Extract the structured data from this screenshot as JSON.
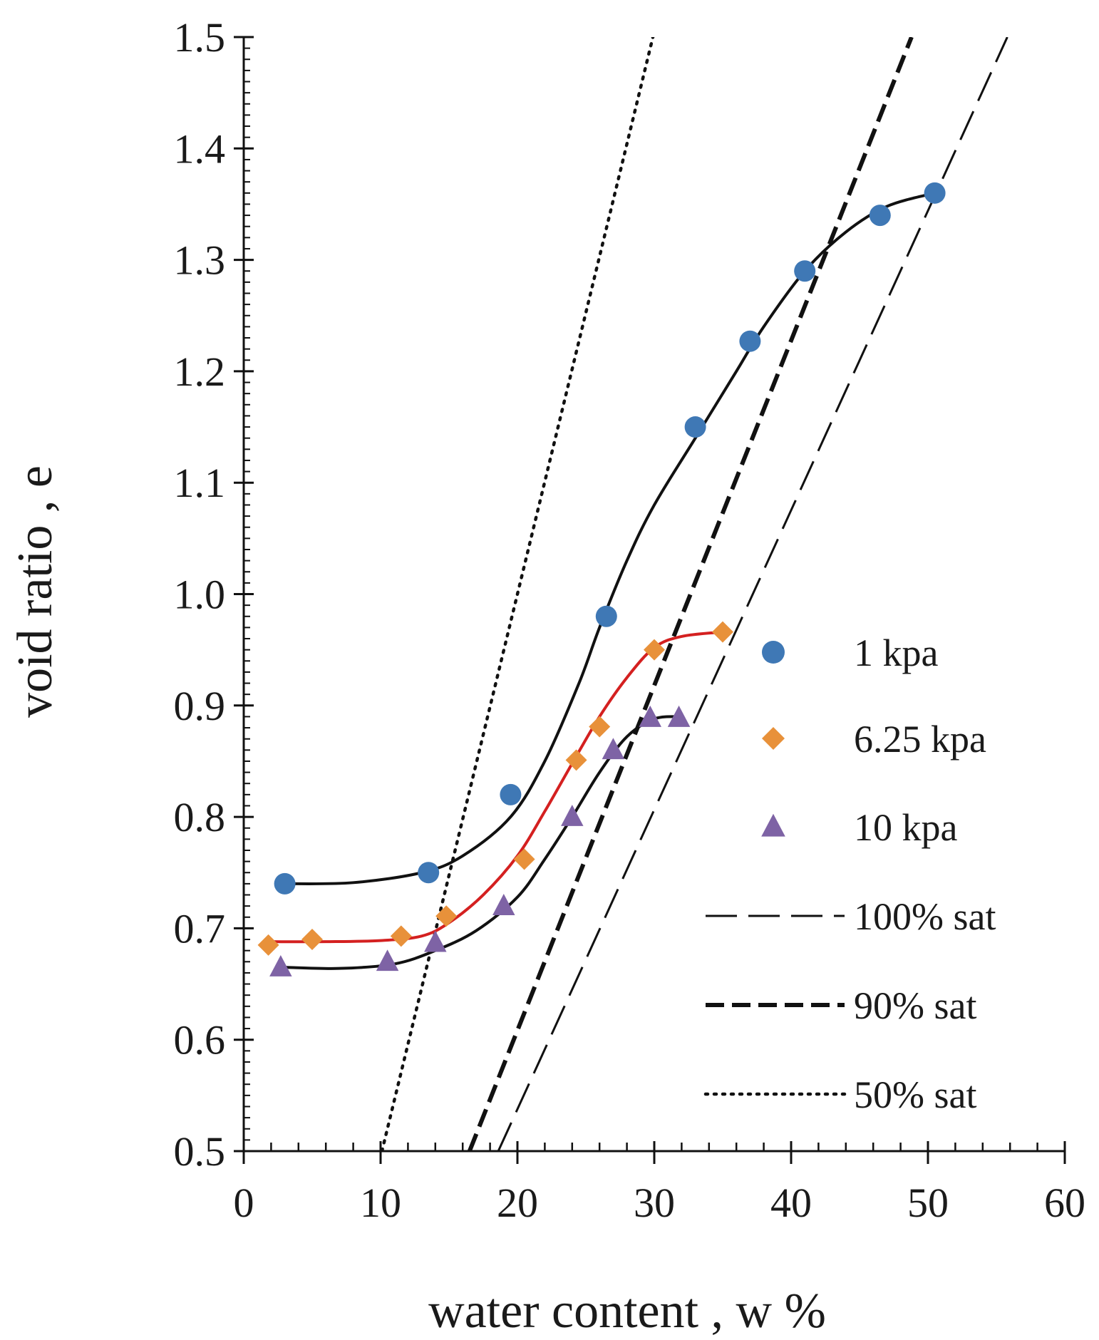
{
  "chart_data": {
    "type": "scatter",
    "title": "",
    "xlabel": "water content , w %",
    "ylabel": "void ratio , e",
    "xlim": [
      0,
      60
    ],
    "ylim": [
      0.5,
      1.5
    ],
    "x_ticks": [
      0,
      10,
      20,
      30,
      40,
      50,
      60
    ],
    "x_tick_labels": [
      "0",
      "10",
      "20",
      "30",
      "40",
      "50",
      "60"
    ],
    "y_ticks": [
      0.5,
      0.6,
      0.7,
      0.8,
      0.9,
      1.0,
      1.1,
      1.2,
      1.3,
      1.4,
      1.5
    ],
    "y_tick_labels": [
      "0.5",
      "0.6",
      "0.7",
      "0.8",
      "0.9",
      "1.0",
      "1.1",
      "1.2",
      "1.3",
      "1.4",
      "1.5"
    ],
    "grid": false,
    "legend_position": "right",
    "series": [
      {
        "name": "1 kpa",
        "marker": "circle",
        "color": "#3f78b5",
        "fit_color": "#111111",
        "points": [
          [
            3,
            0.74
          ],
          [
            13.5,
            0.75
          ],
          [
            19.5,
            0.82
          ],
          [
            26.5,
            0.98
          ],
          [
            33,
            1.15
          ],
          [
            37,
            1.227
          ],
          [
            41,
            1.29
          ],
          [
            46.5,
            1.34
          ],
          [
            50.5,
            1.36
          ]
        ],
        "fit_curve": [
          [
            3,
            0.74
          ],
          [
            8,
            0.741
          ],
          [
            13,
            0.75
          ],
          [
            16,
            0.765
          ],
          [
            19.5,
            0.8
          ],
          [
            22,
            0.85
          ],
          [
            24.5,
            0.92
          ],
          [
            26,
            0.97
          ],
          [
            28,
            1.03
          ],
          [
            30,
            1.08
          ],
          [
            33,
            1.14
          ],
          [
            36,
            1.2
          ],
          [
            38,
            1.24
          ],
          [
            41,
            1.29
          ],
          [
            44,
            1.325
          ],
          [
            47,
            1.348
          ],
          [
            50.5,
            1.36
          ]
        ]
      },
      {
        "name": "6.25 kpa",
        "marker": "diamond",
        "color": "#e8913a",
        "fit_color": "#d42020",
        "points": [
          [
            1.8,
            0.685
          ],
          [
            5,
            0.69
          ],
          [
            11.5,
            0.693
          ],
          [
            14.8,
            0.711
          ],
          [
            20.5,
            0.762
          ],
          [
            24.3,
            0.851
          ],
          [
            26,
            0.881
          ],
          [
            30,
            0.95
          ],
          [
            35,
            0.966
          ]
        ],
        "fit_curve": [
          [
            2,
            0.688
          ],
          [
            6,
            0.688
          ],
          [
            10,
            0.689
          ],
          [
            13,
            0.693
          ],
          [
            15,
            0.705
          ],
          [
            17.5,
            0.73
          ],
          [
            20,
            0.765
          ],
          [
            22,
            0.805
          ],
          [
            24,
            0.848
          ],
          [
            26,
            0.89
          ],
          [
            28,
            0.925
          ],
          [
            30,
            0.952
          ],
          [
            32,
            0.962
          ],
          [
            35,
            0.966
          ]
        ]
      },
      {
        "name": "10 kpa",
        "marker": "triangle",
        "color": "#7e63a5",
        "fit_color": "#111111",
        "points": [
          [
            2.7,
            0.665
          ],
          [
            10.5,
            0.67
          ],
          [
            14,
            0.687
          ],
          [
            19,
            0.72
          ],
          [
            24,
            0.8
          ],
          [
            27,
            0.86
          ],
          [
            29.7,
            0.889
          ],
          [
            31.8,
            0.889
          ]
        ],
        "fit_curve": [
          [
            3,
            0.665
          ],
          [
            7,
            0.664
          ],
          [
            11,
            0.668
          ],
          [
            14,
            0.68
          ],
          [
            17,
            0.698
          ],
          [
            20,
            0.728
          ],
          [
            22,
            0.762
          ],
          [
            24,
            0.8
          ],
          [
            26,
            0.84
          ],
          [
            28,
            0.872
          ],
          [
            30,
            0.888
          ],
          [
            32,
            0.89
          ]
        ]
      }
    ],
    "reference_lines": [
      {
        "name": "100% sat",
        "style": "long-dash",
        "points": [
          [
            18.6,
            0.5
          ],
          [
            55.8,
            1.5
          ]
        ]
      },
      {
        "name": "90% sat",
        "style": "heavy-dash",
        "points": [
          [
            16.5,
            0.5
          ],
          [
            48.8,
            1.5
          ]
        ]
      },
      {
        "name": "50% sat",
        "style": "dotted",
        "points": [
          [
            10.1,
            0.5
          ],
          [
            29.9,
            1.5
          ]
        ]
      }
    ]
  }
}
